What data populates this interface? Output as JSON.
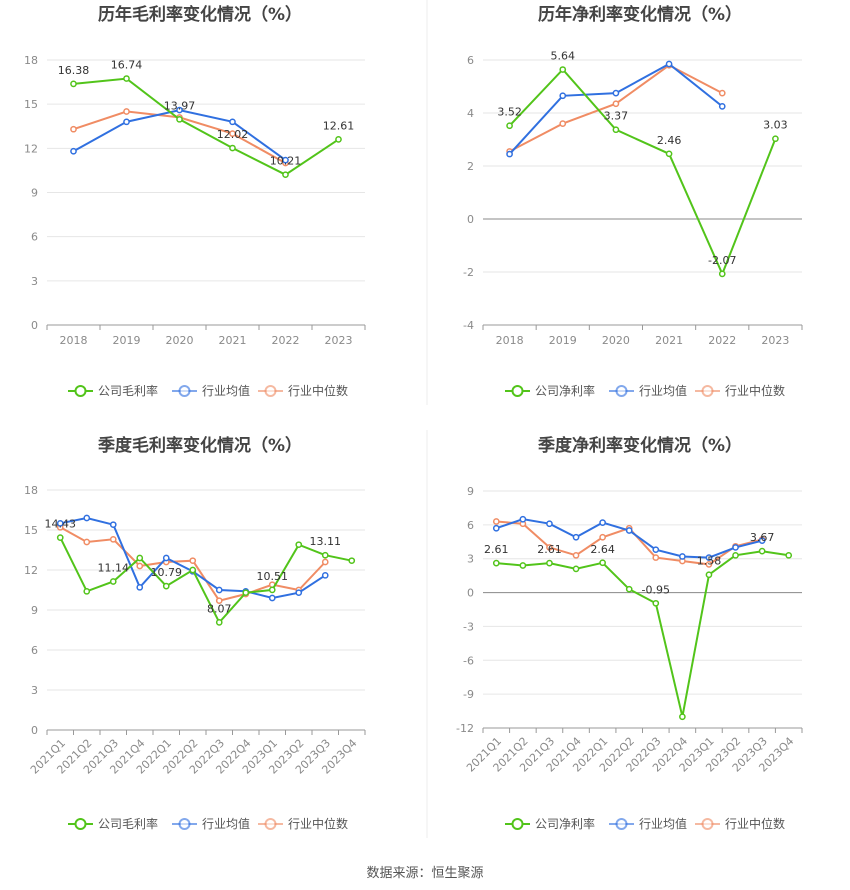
{
  "colors": {
    "company": "#52c41a",
    "avg": "#3070e0",
    "median": "#f08c64",
    "grid": "#e6e6e6",
    "axis": "#999999"
  },
  "source": "数据来源：恒生聚源",
  "chart_data": [
    {
      "type": "line",
      "title": "历年毛利率变化情况（%）",
      "x": [
        "2018",
        "2019",
        "2020",
        "2021",
        "2022",
        "2023"
      ],
      "ylim": [
        0,
        18
      ],
      "yticks": [
        0,
        3,
        6,
        9,
        12,
        15,
        18
      ],
      "legend": "bottom",
      "grid": true,
      "series": [
        {
          "name": "公司毛利率",
          "color": "#52c41a",
          "values": [
            16.38,
            16.74,
            13.97,
            12.02,
            10.21,
            12.61
          ],
          "labels": [
            "16.38",
            "16.74",
            "13.97",
            "12.02",
            "10.21",
            "12.61"
          ]
        },
        {
          "name": "行业均值",
          "color": "#3070e0",
          "values": [
            11.8,
            13.8,
            14.6,
            13.8,
            11.2,
            null
          ]
        },
        {
          "name": "行业中位数",
          "color": "#f08c64",
          "values": [
            13.3,
            14.5,
            14.1,
            13.0,
            11.0,
            null
          ]
        }
      ]
    },
    {
      "type": "line",
      "title": "历年净利率变化情况（%）",
      "x": [
        "2018",
        "2019",
        "2020",
        "2021",
        "2022",
        "2023"
      ],
      "ylim": [
        -4,
        6
      ],
      "yticks": [
        -4,
        -2,
        0,
        2,
        4,
        6
      ],
      "legend": "bottom",
      "grid": true,
      "series": [
        {
          "name": "公司净利率",
          "color": "#52c41a",
          "values": [
            3.52,
            5.64,
            3.37,
            2.46,
            -2.07,
            3.03
          ],
          "labels": [
            "3.52",
            "5.64",
            "3.37",
            "2.46",
            "-2.07",
            "3.03"
          ]
        },
        {
          "name": "行业均值",
          "color": "#3070e0",
          "values": [
            2.45,
            4.65,
            4.75,
            5.85,
            4.25,
            null
          ]
        },
        {
          "name": "行业中位数",
          "color": "#f08c64",
          "values": [
            2.55,
            3.6,
            4.35,
            5.8,
            4.75,
            null
          ]
        }
      ]
    },
    {
      "type": "line",
      "title": "季度毛利率变化情况（%）",
      "x": [
        "2021Q1",
        "2021Q2",
        "2021Q3",
        "2021Q4",
        "2022Q1",
        "2022Q2",
        "2022Q3",
        "2022Q4",
        "2023Q1",
        "2023Q2",
        "2023Q3",
        "2023Q4"
      ],
      "ylim": [
        0,
        18
      ],
      "yticks": [
        0,
        3,
        6,
        9,
        12,
        15,
        18
      ],
      "legend": "bottom",
      "grid": true,
      "series": [
        {
          "name": "公司毛利率",
          "color": "#52c41a",
          "values": [
            14.43,
            10.4,
            11.14,
            12.9,
            10.79,
            12.0,
            8.07,
            10.3,
            10.51,
            13.9,
            13.11,
            12.7
          ],
          "labels": [
            "14.43",
            "",
            "11.14",
            "",
            "10.79",
            "",
            "8.07",
            "",
            "10.51",
            "",
            "13.11",
            ""
          ]
        },
        {
          "name": "行业均值",
          "color": "#3070e0",
          "values": [
            15.5,
            15.9,
            15.4,
            10.7,
            12.9,
            11.9,
            10.5,
            10.4,
            9.9,
            10.3,
            11.6,
            null
          ]
        },
        {
          "name": "行业中位数",
          "color": "#f08c64",
          "values": [
            15.2,
            14.1,
            14.3,
            12.3,
            12.6,
            12.7,
            9.7,
            10.2,
            10.9,
            10.5,
            12.6,
            null
          ]
        }
      ]
    },
    {
      "type": "line",
      "title": "季度净利率变化情况（%）",
      "x": [
        "2021Q1",
        "2021Q2",
        "2021Q3",
        "2021Q4",
        "2022Q1",
        "2022Q2",
        "2022Q3",
        "2022Q4",
        "2023Q1",
        "2023Q2",
        "2023Q3",
        "2023Q4"
      ],
      "ylim": [
        -12,
        9
      ],
      "yticks": [
        -12,
        -9,
        -6,
        -3,
        0,
        3,
        6,
        9
      ],
      "legend": "bottom",
      "grid": true,
      "series": [
        {
          "name": "公司净利率",
          "color": "#52c41a",
          "values": [
            2.61,
            2.4,
            2.61,
            2.1,
            2.64,
            0.3,
            -0.95,
            -11.0,
            1.58,
            3.3,
            3.67,
            3.3
          ],
          "labels": [
            "2.61",
            "",
            "2.61",
            "",
            "2.64",
            "",
            "-0.95",
            "",
            "1.58",
            "",
            "3.67",
            ""
          ]
        },
        {
          "name": "行业均值",
          "color": "#3070e0",
          "values": [
            5.7,
            6.5,
            6.1,
            4.9,
            6.2,
            5.5,
            3.8,
            3.2,
            3.1,
            4.0,
            4.6,
            null
          ]
        },
        {
          "name": "行业中位数",
          "color": "#f08c64",
          "values": [
            6.3,
            6.1,
            4.0,
            3.3,
            4.9,
            5.7,
            3.1,
            2.8,
            2.5,
            4.1,
            4.7,
            null
          ]
        }
      ]
    }
  ]
}
